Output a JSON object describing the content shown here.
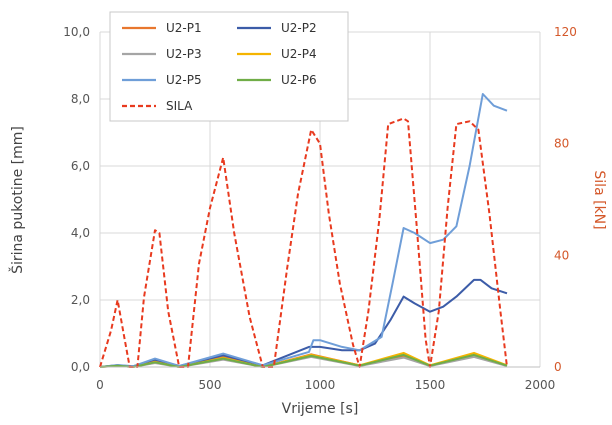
{
  "chart_data": {
    "type": "line",
    "xlabel": "Vrijeme [s]",
    "ylabel": "Širina pukotine [mm]",
    "y2label": "Sila [kN]",
    "xlim": [
      0,
      2000
    ],
    "ylim": [
      0,
      10
    ],
    "y2lim": [
      0,
      120
    ],
    "x_ticks": [
      "0",
      "500",
      "1000",
      "1500",
      "2000"
    ],
    "y_ticks": [
      "0,0",
      "2,0",
      "4,0",
      "6,0",
      "8,0",
      "10,0"
    ],
    "y2_ticks": [
      "0",
      "40",
      "80",
      "120"
    ],
    "grid": true,
    "legend_position": "top-left",
    "series": [
      {
        "name": "U2-P1",
        "axis": "left",
        "color": "#e8772e",
        "dash": "",
        "points": [
          [
            0,
            0
          ],
          [
            80,
            0.05
          ],
          [
            150,
            0
          ],
          [
            250,
            0.18
          ],
          [
            360,
            0
          ],
          [
            560,
            0.3
          ],
          [
            740,
            0
          ],
          [
            960,
            0.38
          ],
          [
            1180,
            0.05
          ],
          [
            1380,
            0.32
          ],
          [
            1500,
            0.05
          ],
          [
            1700,
            0.35
          ],
          [
            1850,
            0.05
          ]
        ]
      },
      {
        "name": "U2-P2",
        "axis": "left",
        "color": "#3c5ca8",
        "dash": "",
        "points": [
          [
            0,
            0
          ],
          [
            80,
            0.05
          ],
          [
            150,
            0.02
          ],
          [
            250,
            0.22
          ],
          [
            360,
            0.03
          ],
          [
            560,
            0.35
          ],
          [
            740,
            0.05
          ],
          [
            950,
            0.6
          ],
          [
            1000,
            0.6
          ],
          [
            1100,
            0.5
          ],
          [
            1180,
            0.5
          ],
          [
            1250,
            0.7
          ],
          [
            1320,
            1.4
          ],
          [
            1380,
            2.1
          ],
          [
            1430,
            1.9
          ],
          [
            1500,
            1.65
          ],
          [
            1560,
            1.8
          ],
          [
            1620,
            2.1
          ],
          [
            1700,
            2.6
          ],
          [
            1730,
            2.6
          ],
          [
            1780,
            2.35
          ],
          [
            1850,
            2.2
          ]
        ]
      },
      {
        "name": "U2-P3",
        "axis": "left",
        "color": "#a5a5a5",
        "dash": "",
        "points": [
          [
            0,
            0
          ],
          [
            80,
            0.03
          ],
          [
            150,
            0
          ],
          [
            250,
            0.12
          ],
          [
            360,
            0
          ],
          [
            560,
            0.22
          ],
          [
            740,
            0
          ],
          [
            960,
            0.3
          ],
          [
            1180,
            0.03
          ],
          [
            1380,
            0.28
          ],
          [
            1500,
            0.03
          ],
          [
            1700,
            0.3
          ],
          [
            1850,
            0.03
          ]
        ]
      },
      {
        "name": "U2-P4",
        "axis": "left",
        "color": "#f5b400",
        "dash": "",
        "points": [
          [
            0,
            0
          ],
          [
            80,
            0.04
          ],
          [
            150,
            0
          ],
          [
            250,
            0.15
          ],
          [
            360,
            0
          ],
          [
            560,
            0.27
          ],
          [
            740,
            0
          ],
          [
            960,
            0.36
          ],
          [
            1180,
            0.05
          ],
          [
            1380,
            0.42
          ],
          [
            1500,
            0.05
          ],
          [
            1700,
            0.42
          ],
          [
            1850,
            0.05
          ]
        ]
      },
      {
        "name": "U2-P5",
        "axis": "left",
        "color": "#6f9ed8",
        "dash": "",
        "points": [
          [
            0,
            0
          ],
          [
            80,
            0.06
          ],
          [
            150,
            0.02
          ],
          [
            250,
            0.25
          ],
          [
            360,
            0.03
          ],
          [
            560,
            0.4
          ],
          [
            740,
            0.05
          ],
          [
            950,
            0.45
          ],
          [
            970,
            0.8
          ],
          [
            1000,
            0.8
          ],
          [
            1100,
            0.6
          ],
          [
            1180,
            0.5
          ],
          [
            1280,
            0.9
          ],
          [
            1330,
            2.5
          ],
          [
            1380,
            4.15
          ],
          [
            1430,
            4.0
          ],
          [
            1500,
            3.7
          ],
          [
            1560,
            3.8
          ],
          [
            1620,
            4.2
          ],
          [
            1680,
            6.0
          ],
          [
            1740,
            8.15
          ],
          [
            1790,
            7.8
          ],
          [
            1850,
            7.65
          ]
        ]
      },
      {
        "name": "U2-P6",
        "axis": "left",
        "color": "#70ad47",
        "dash": "",
        "points": [
          [
            0,
            0
          ],
          [
            80,
            0.04
          ],
          [
            150,
            0
          ],
          [
            250,
            0.14
          ],
          [
            360,
            0
          ],
          [
            560,
            0.25
          ],
          [
            740,
            0
          ],
          [
            960,
            0.33
          ],
          [
            1180,
            0.04
          ],
          [
            1380,
            0.36
          ],
          [
            1500,
            0.04
          ],
          [
            1700,
            0.36
          ],
          [
            1850,
            0.04
          ]
        ]
      },
      {
        "name": "SILA",
        "axis": "right",
        "color": "#e83a1f",
        "dash": "5,3",
        "points": [
          [
            0,
            0
          ],
          [
            50,
            13
          ],
          [
            80,
            24
          ],
          [
            105,
            13
          ],
          [
            135,
            0
          ],
          [
            170,
            0
          ],
          [
            200,
            25
          ],
          [
            250,
            49
          ],
          [
            270,
            48
          ],
          [
            310,
            20
          ],
          [
            360,
            0
          ],
          [
            400,
            0
          ],
          [
            450,
            37
          ],
          [
            500,
            57
          ],
          [
            560,
            75
          ],
          [
            610,
            48
          ],
          [
            680,
            18
          ],
          [
            740,
            0
          ],
          [
            790,
            0
          ],
          [
            850,
            35
          ],
          [
            900,
            62
          ],
          [
            960,
            85
          ],
          [
            1000,
            80
          ],
          [
            1040,
            55
          ],
          [
            1090,
            30
          ],
          [
            1150,
            8
          ],
          [
            1180,
            0
          ],
          [
            1220,
            20
          ],
          [
            1270,
            53
          ],
          [
            1310,
            87
          ],
          [
            1380,
            89
          ],
          [
            1400,
            88
          ],
          [
            1440,
            50
          ],
          [
            1480,
            10
          ],
          [
            1500,
            0
          ],
          [
            1540,
            20
          ],
          [
            1580,
            57
          ],
          [
            1620,
            87
          ],
          [
            1680,
            88
          ],
          [
            1720,
            85
          ],
          [
            1770,
            55
          ],
          [
            1820,
            20
          ],
          [
            1850,
            0
          ]
        ]
      }
    ]
  }
}
